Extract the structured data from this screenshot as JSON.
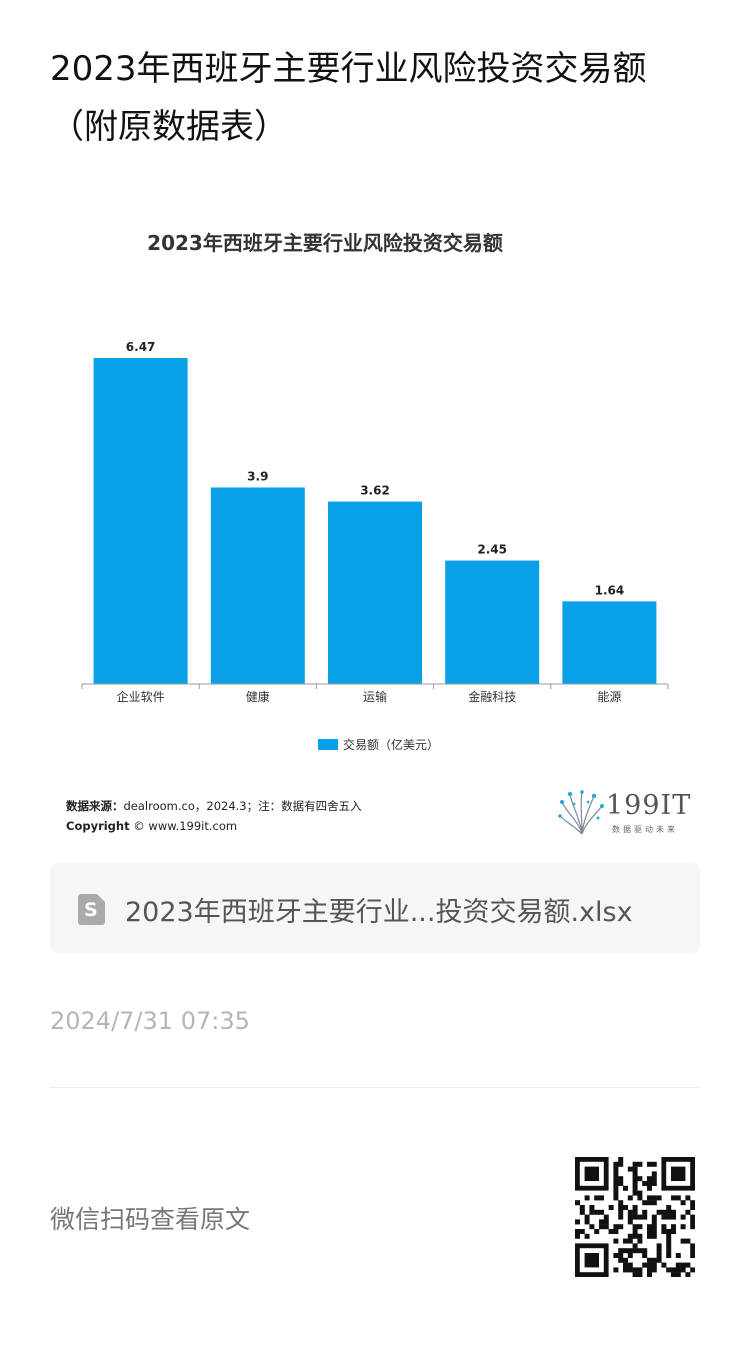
{
  "article": {
    "title": "2023年西班牙主要行业风险投资交易额（附原数据表）",
    "timestamp": "2024/7/31 07:35",
    "wechat_hint": "微信扫码查看原文"
  },
  "attachment": {
    "file_name": "2023年西班牙主要行业...投资交易额.xlsx",
    "icon": "spreadsheet-file-icon"
  },
  "chart_data": {
    "type": "bar",
    "title": "2023年西班牙主要行业风险投资交易额",
    "categories": [
      "企业软件",
      "健康",
      "运输",
      "金融科技",
      "能源"
    ],
    "series": [
      {
        "name": "交易额（亿美元）",
        "values": [
          6.47,
          3.9,
          3.62,
          2.45,
          1.64
        ],
        "labels": [
          "6.47",
          "3.9",
          "3.62",
          "2.45",
          "1.64"
        ]
      }
    ],
    "ylim": [
      0,
      6.47
    ],
    "legend_position": "bottom",
    "grid": false,
    "bar_color": "#08a0e6"
  },
  "footer": {
    "source_label": "数据来源：",
    "source_text": "dealroom.co，2024.3；注：数据有四舍五入",
    "copyright_label": "Copyright",
    "copyright_text": " © www.199it.com",
    "logo_text": "199IT",
    "logo_sub": "数据驱动未来"
  }
}
